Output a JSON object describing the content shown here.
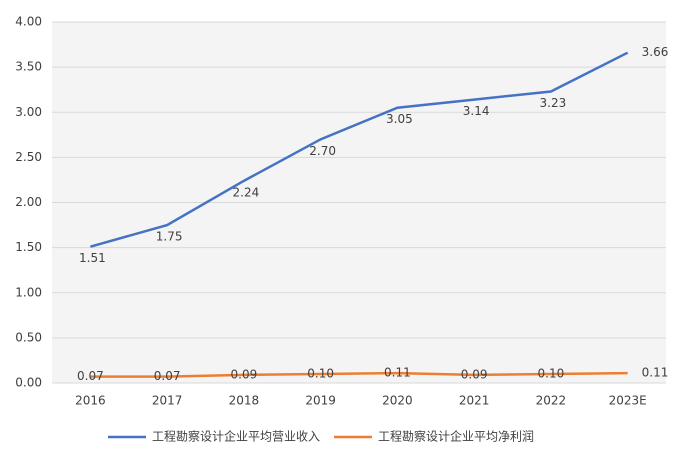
{
  "chart_data": {
    "type": "line",
    "categories": [
      "2016",
      "2017",
      "2018",
      "2019",
      "2020",
      "2021",
      "2022",
      "2023E"
    ],
    "series": [
      {
        "name": "工程勘察设计企业平均营业收入",
        "color": "#4472c4",
        "values": [
          1.51,
          1.75,
          2.24,
          2.7,
          3.05,
          3.14,
          3.23,
          3.66
        ],
        "value_labels": [
          "1.51",
          "1.75",
          "2.24",
          "2.70",
          "3.05",
          "3.14",
          "3.23",
          "3.66"
        ]
      },
      {
        "name": "工程勘察设计企业平均净利润",
        "color": "#ed7d31",
        "values": [
          0.07,
          0.07,
          0.09,
          0.1,
          0.11,
          0.09,
          0.1,
          0.11
        ],
        "value_labels": [
          "0.07",
          "0.07",
          "0.09",
          "0.10",
          "0.11",
          "0.09",
          "0.10",
          "0.11"
        ]
      }
    ],
    "ylim": [
      0,
      4
    ],
    "yticks": [
      {
        "value": 0,
        "label": "0.00"
      },
      {
        "value": 0.5,
        "label": "0.50"
      },
      {
        "value": 1,
        "label": "1.00"
      },
      {
        "value": 1.5,
        "label": "1.50"
      },
      {
        "value": 2,
        "label": "2.00"
      },
      {
        "value": 2.5,
        "label": "2.50"
      },
      {
        "value": 3,
        "label": "3.00"
      },
      {
        "value": 3.5,
        "label": "3.50"
      },
      {
        "value": 4,
        "label": "4.00"
      }
    ],
    "grid": true
  }
}
